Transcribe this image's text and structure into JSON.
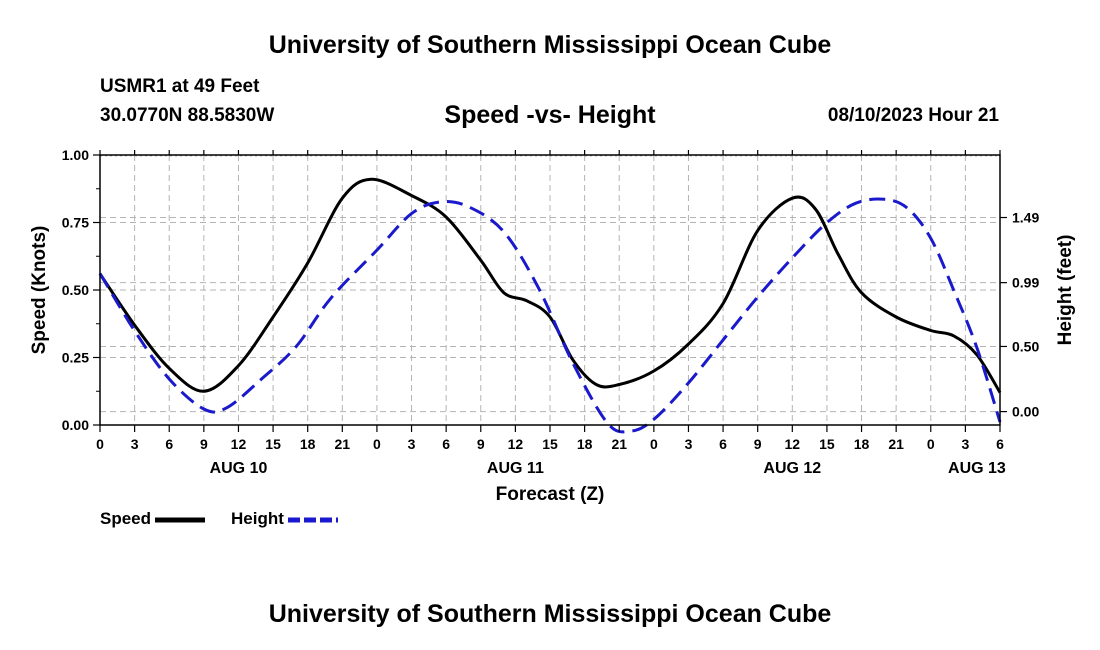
{
  "header": {
    "title": "University of Southern Mississippi Ocean Cube",
    "station": "USMR1 at 49 Feet",
    "coordinates": "30.0770N  88.5830W",
    "chart_title": "Speed -vs- Height",
    "datetime": "08/10/2023 Hour 21"
  },
  "footer": {
    "title": "University of Southern Mississippi Ocean Cube"
  },
  "legend": {
    "speed_label": "Speed",
    "height_label": "Height"
  },
  "colors": {
    "speed": "#000000",
    "height": "#1a1acc",
    "grid": "#b4b4b4"
  },
  "chart_data": {
    "type": "line",
    "title": "Speed -vs- Height",
    "xlabel": "Forecast (Z)",
    "ylabel": "Speed (Knots)",
    "y2label": "Height (feet)",
    "xlim": [
      0,
      78
    ],
    "ylim": [
      0,
      1.0
    ],
    "y2lim": [
      -0.103,
      1.97
    ],
    "x_ticks": [
      0,
      3,
      6,
      9,
      12,
      15,
      18,
      21,
      24,
      27,
      30,
      33,
      36,
      39,
      42,
      45,
      48,
      51,
      54,
      57,
      60,
      63,
      66,
      69,
      72,
      75,
      78
    ],
    "x_tick_labels": [
      "0",
      "3",
      "6",
      "9",
      "12",
      "15",
      "18",
      "21",
      "0",
      "3",
      "6",
      "9",
      "12",
      "15",
      "18",
      "21",
      "0",
      "3",
      "6",
      "9",
      "12",
      "15",
      "18",
      "21",
      "0",
      "3",
      "6"
    ],
    "day_labels": [
      {
        "x": 12,
        "label": "AUG 10"
      },
      {
        "x": 36,
        "label": "AUG 11"
      },
      {
        "x": 60,
        "label": "AUG 12"
      },
      {
        "x": 76,
        "label": "AUG 13"
      }
    ],
    "y_ticks": [
      0,
      0.25,
      0.5,
      0.75,
      1.0
    ],
    "y_tick_labels": [
      "0.00",
      "0.25",
      "0.50",
      "0.75",
      "1.00"
    ],
    "y2_ticks": [
      0.0,
      0.5,
      0.99,
      1.49
    ],
    "y2_tick_labels": [
      "0.00",
      "0.50",
      "0.99",
      "1.49"
    ],
    "grid": true,
    "series": [
      {
        "name": "Speed",
        "axis": "left",
        "style": "solid",
        "points": [
          [
            0,
            0.56
          ],
          [
            3,
            0.37
          ],
          [
            6,
            0.21
          ],
          [
            9,
            0.125
          ],
          [
            12,
            0.22
          ],
          [
            15,
            0.4
          ],
          [
            18,
            0.6
          ],
          [
            21,
            0.84
          ],
          [
            23.5,
            0.91
          ],
          [
            27,
            0.85
          ],
          [
            30,
            0.77
          ],
          [
            33,
            0.61
          ],
          [
            35,
            0.49
          ],
          [
            37,
            0.46
          ],
          [
            39,
            0.4
          ],
          [
            41,
            0.24
          ],
          [
            43,
            0.15
          ],
          [
            45,
            0.15
          ],
          [
            48,
            0.2
          ],
          [
            51,
            0.3
          ],
          [
            54,
            0.45
          ],
          [
            57,
            0.72
          ],
          [
            60,
            0.84
          ],
          [
            62,
            0.8
          ],
          [
            64,
            0.63
          ],
          [
            66,
            0.49
          ],
          [
            69,
            0.4
          ],
          [
            72,
            0.35
          ],
          [
            74,
            0.33
          ],
          [
            76,
            0.26
          ],
          [
            78,
            0.12
          ]
        ]
      },
      {
        "name": "Height",
        "axis": "right",
        "style": "dashed",
        "points": [
          [
            0,
            1.06
          ],
          [
            3,
            0.62
          ],
          [
            6,
            0.25
          ],
          [
            9,
            0.02
          ],
          [
            11,
            0.03
          ],
          [
            14,
            0.25
          ],
          [
            17,
            0.5
          ],
          [
            20,
            0.87
          ],
          [
            24,
            1.24
          ],
          [
            27,
            1.52
          ],
          [
            29.5,
            1.61
          ],
          [
            32,
            1.57
          ],
          [
            35,
            1.38
          ],
          [
            38,
            0.95
          ],
          [
            41,
            0.37
          ],
          [
            44,
            -0.09
          ],
          [
            46,
            -0.15
          ],
          [
            48,
            -0.06
          ],
          [
            51,
            0.22
          ],
          [
            54,
            0.55
          ],
          [
            57,
            0.88
          ],
          [
            60,
            1.18
          ],
          [
            63,
            1.45
          ],
          [
            65.5,
            1.6
          ],
          [
            68,
            1.63
          ],
          [
            70,
            1.56
          ],
          [
            72,
            1.33
          ],
          [
            74,
            0.93
          ],
          [
            76,
            0.49
          ],
          [
            78,
            -0.08
          ]
        ]
      }
    ]
  }
}
